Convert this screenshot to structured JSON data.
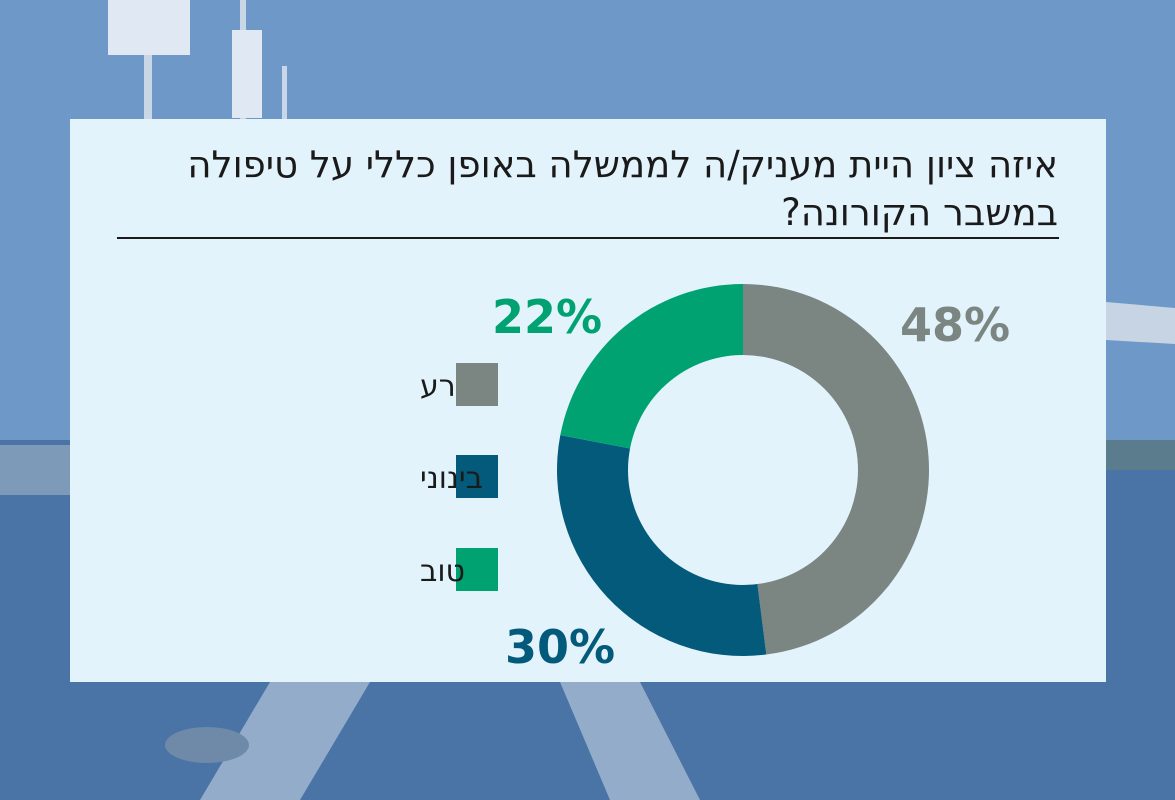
{
  "title": "איזה ציון היית מעניק/ה לממשלה באופן כללי על טיפולה במשבר הקורונה?",
  "colors": {
    "bad": "#7b8582",
    "medium": "#045a7b",
    "good": "#01a271",
    "panel": "#e3f3fb"
  },
  "chart_data": {
    "type": "pie",
    "title": "איזה ציון היית מעניק/ה לממשלה באופן כללי על טיפולה במשבר הקורונה?",
    "categories": [
      "רע",
      "בינוני",
      "טוב"
    ],
    "values": [
      48,
      30,
      22
    ],
    "labels": [
      "48%",
      "30%",
      "22%"
    ],
    "style": "donut",
    "legend_position": "left"
  }
}
